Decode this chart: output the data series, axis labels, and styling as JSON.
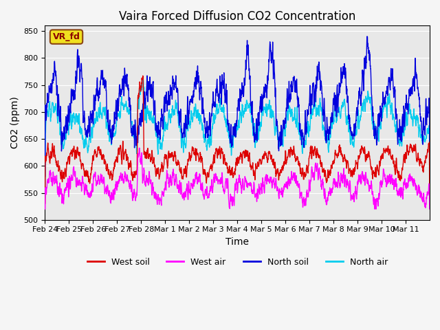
{
  "title": "Vaira Forced Diffusion CO2 Concentration",
  "xlabel": "Time",
  "ylabel": "CO2 (ppm)",
  "ylim": [
    500,
    860
  ],
  "yticks": [
    500,
    550,
    600,
    650,
    700,
    750,
    800,
    850
  ],
  "annotation_text": "VR_fd",
  "colors": {
    "west_soil": "#dd0000",
    "west_air": "#ff00ff",
    "north_soil": "#0000dd",
    "north_air": "#00ccee"
  },
  "legend_labels": [
    "West soil",
    "West air",
    "North soil",
    "North air"
  ],
  "fig_facecolor": "#f5f5f5",
  "axes_facecolor": "#e8e8e8",
  "n_points": 2400,
  "n_days": 16,
  "tick_labels": [
    "Feb 24",
    "Feb 25",
    "Feb 26",
    "Feb 27",
    "Feb 28",
    "Mar 1",
    "Mar 2",
    "Mar 3",
    "Mar 4",
    "Mar 5",
    "Mar 6",
    "Mar 7",
    "Mar 8",
    "Mar 9",
    "Mar 10",
    "Mar 11"
  ],
  "linewidth": 1.0,
  "title_fontsize": 12,
  "axis_fontsize": 10,
  "tick_fontsize": 8
}
